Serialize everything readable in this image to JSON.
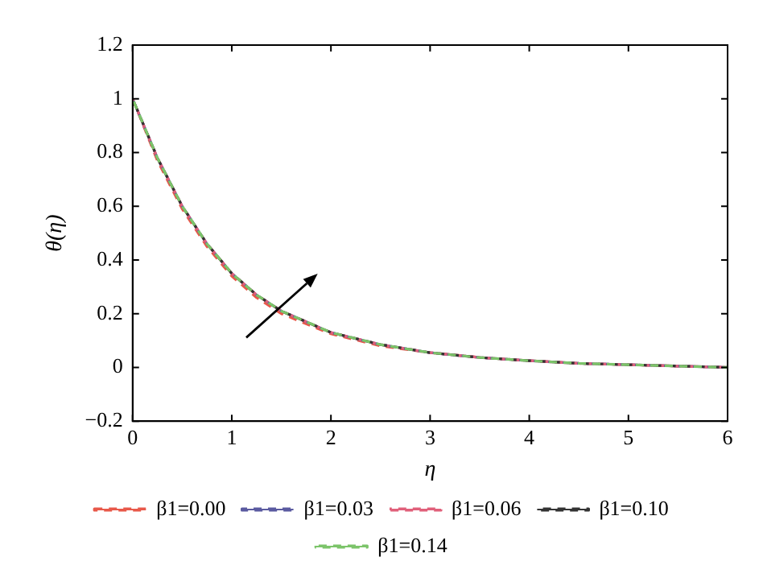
{
  "chart_data": {
    "type": "line",
    "xlabel": "η",
    "ylabel": "θ(η)",
    "xlim": [
      0,
      6
    ],
    "xticks": [
      0,
      1,
      2,
      3,
      4,
      5,
      6
    ],
    "ylim": [
      -0.2,
      1.2
    ],
    "yticks": [
      {
        "value": -0.2,
        "label": "−0.2"
      },
      0,
      0.2,
      0.4,
      0.6,
      0.8,
      1,
      1.2
    ],
    "grid": false,
    "legend": "bottom",
    "line_style": "dashed",
    "marker": "none",
    "x": [
      0,
      0.25,
      0.5,
      0.75,
      1,
      1.25,
      1.5,
      2,
      2.5,
      3,
      3.5,
      4,
      4.5,
      5,
      5.5,
      6
    ],
    "series": [
      {
        "name": "β1=0.00",
        "color": "#e8594a",
        "values": [
          1,
          0.77,
          0.59,
          0.45,
          0.34,
          0.26,
          0.2,
          0.125,
          0.08,
          0.055,
          0.037,
          0.025,
          0.015,
          0.01,
          0.005,
          0
        ]
      },
      {
        "name": "β1=0.03",
        "color": "#5a5aa0",
        "values": [
          1,
          0.78,
          0.6,
          0.46,
          0.35,
          0.27,
          0.21,
          0.13,
          0.085,
          0.055,
          0.037,
          0.025,
          0.015,
          0.01,
          0.005,
          0
        ]
      },
      {
        "name": "β1=0.06",
        "color": "#e0607a",
        "values": [
          1,
          0.78,
          0.6,
          0.46,
          0.35,
          0.27,
          0.21,
          0.13,
          0.085,
          0.055,
          0.037,
          0.025,
          0.015,
          0.01,
          0.005,
          0
        ]
      },
      {
        "name": "β1=0.10",
        "color": "#333333",
        "values": [
          1,
          0.78,
          0.6,
          0.46,
          0.35,
          0.27,
          0.21,
          0.13,
          0.085,
          0.055,
          0.037,
          0.025,
          0.015,
          0.01,
          0.005,
          0
        ]
      },
      {
        "name": "β1=0.14",
        "color": "#7cc46a",
        "values": [
          1,
          0.78,
          0.6,
          0.46,
          0.35,
          0.27,
          0.21,
          0.13,
          0.085,
          0.055,
          0.037,
          0.025,
          0.015,
          0.01,
          0.005,
          0
        ]
      }
    ]
  }
}
